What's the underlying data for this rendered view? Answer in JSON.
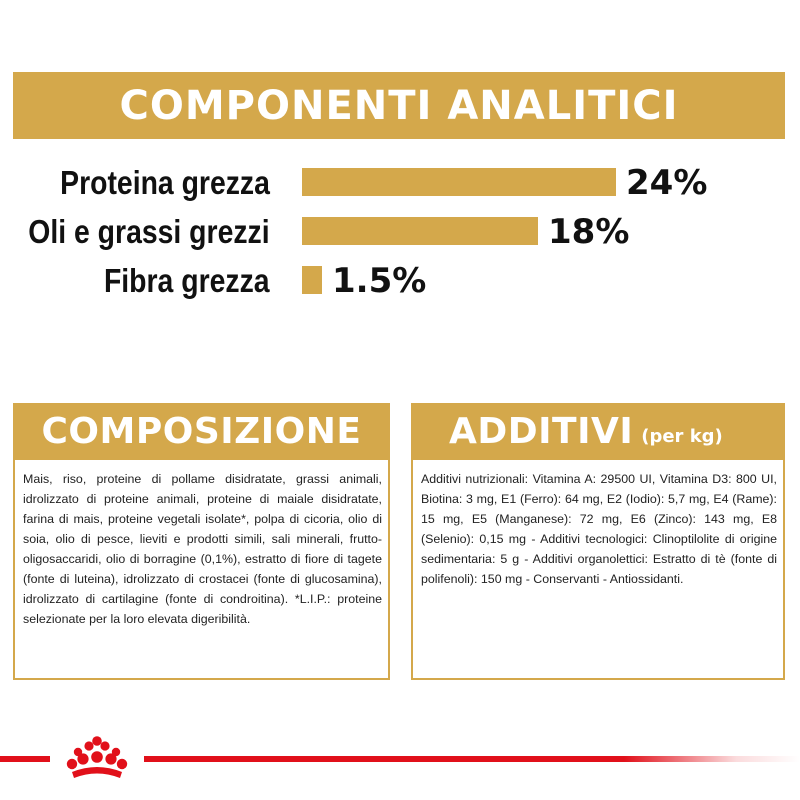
{
  "header": {
    "title": "COMPONENTI ANALITICI"
  },
  "analytics": [
    {
      "label": "Proteina grezza",
      "value_text": "24%",
      "value": 24
    },
    {
      "label": "Oli e grassi grezzi",
      "value_text": "18%",
      "value": 18
    },
    {
      "label": "Fibra grezza",
      "value_text": "1.5%",
      "value": 1.5
    }
  ],
  "composition": {
    "title": "COMPOSIZIONE",
    "text": "Mais, riso, proteine di pollame disidratate, grassi animali, idrolizzato di proteine animali, proteine di maiale disidratate, farina di mais, proteine vegetali isolate*, polpa di cicoria, olio di soia, olio di pesce, lieviti e prodotti simili, sali minerali, frutto-oligosaccaridi, olio di borragine (0,1%), estratto di fiore di tagete (fonte di luteina), idrolizzato di crostacei (fonte di glucosamina), idrolizzato di cartilagine (fonte di condroitina). *L.I.P.: proteine selezionate per la loro elevata digeribilità."
  },
  "additives": {
    "title": "ADDITIVI",
    "subtitle": "(per kg)",
    "text": "Additivi nutrizionali: Vitamina A: 29500 UI, Vitamina D3: 800 UI, Biotina: 3 mg, E1 (Ferro): 64 mg, E2 (Iodio): 5,7 mg, E4 (Rame): 15 mg, E5 (Manganese): 72 mg, E6 (Zinco): 143 mg, E8 (Selenio): 0,15 mg - Additivi tecnologici: Clinoptilolite di origine sedimentaria: 5 g - Additivi organolettici: Estratto di tè (fonte di polifenoli): 150 mg - Conservanti - Antiossidanti."
  },
  "colors": {
    "gold": "#d4a84b",
    "brand_red": "#e1101a"
  },
  "footer": {
    "logo_icon": "royal-canin-crown-icon"
  }
}
